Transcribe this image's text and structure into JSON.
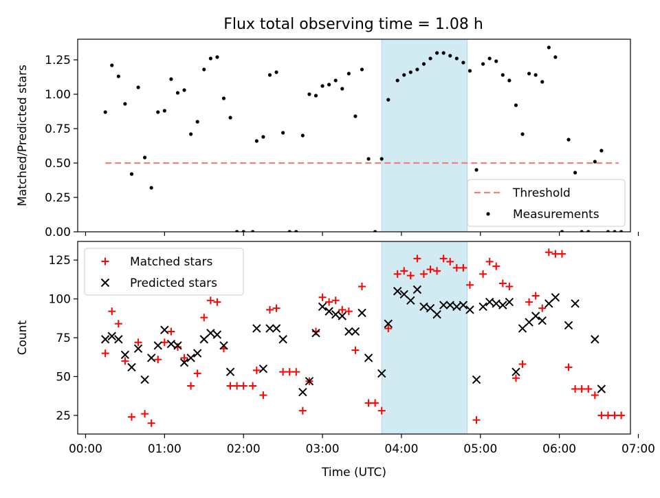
{
  "title": "Flux total observing time = 1.08 h",
  "colors": {
    "threshold": "#f08080",
    "measurement": "#000000",
    "matched": "#ff0000",
    "predicted": "#000000",
    "highlight": "#add8e6"
  },
  "chart_data": [
    {
      "type": "scatter",
      "name": "ratio-panel",
      "ylabel": "Matched/Predicted stars",
      "xlabel": "",
      "ylim": [
        0,
        1.4
      ],
      "xlim_hours": [
        -0.1,
        6.9
      ],
      "yticks": [
        "0.00",
        "0.25",
        "0.50",
        "0.75",
        "1.00",
        "1.25"
      ],
      "ytick_values": [
        0,
        0.25,
        0.5,
        0.75,
        1.0,
        1.25
      ],
      "highlight_span": {
        "start": "03:45",
        "end": "04:50"
      },
      "legend_position": "lower right",
      "legend": [
        "Threshold",
        "Measurements"
      ],
      "threshold": {
        "name": "Threshold",
        "value": 0.5,
        "x_start": "00:15",
        "x_end": "06:45"
      },
      "series": [
        {
          "name": "Measurements",
          "points": [
            [
              "00:15",
              0.87
            ],
            [
              "00:20",
              1.21
            ],
            [
              "00:25",
              1.13
            ],
            [
              "00:30",
              0.93
            ],
            [
              "00:35",
              0.42
            ],
            [
              "00:40",
              1.05
            ],
            [
              "00:45",
              0.54
            ],
            [
              "00:50",
              0.32
            ],
            [
              "00:55",
              0.87
            ],
            [
              "01:00",
              0.88
            ],
            [
              "01:05",
              1.11
            ],
            [
              "01:10",
              1.01
            ],
            [
              "01:15",
              1.03
            ],
            [
              "01:20",
              0.71
            ],
            [
              "01:25",
              0.8
            ],
            [
              "01:30",
              1.18
            ],
            [
              "01:35",
              1.26
            ],
            [
              "01:40",
              1.27
            ],
            [
              "01:45",
              0.97
            ],
            [
              "01:50",
              0.83
            ],
            [
              "01:55",
              0.0
            ],
            [
              "02:00",
              0.0
            ],
            [
              "02:07",
              0.0
            ],
            [
              "02:10",
              0.66
            ],
            [
              "02:15",
              0.69
            ],
            [
              "02:20",
              1.14
            ],
            [
              "02:25",
              1.16
            ],
            [
              "02:30",
              0.72
            ],
            [
              "02:35",
              0.0
            ],
            [
              "02:40",
              0.0
            ],
            [
              "02:45",
              0.7
            ],
            [
              "02:50",
              1.0
            ],
            [
              "02:55",
              0.99
            ],
            [
              "03:00",
              1.06
            ],
            [
              "03:05",
              1.07
            ],
            [
              "03:10",
              1.1
            ],
            [
              "03:15",
              1.04
            ],
            [
              "03:20",
              1.15
            ],
            [
              "03:25",
              0.84
            ],
            [
              "03:30",
              1.18
            ],
            [
              "03:35",
              0.53
            ],
            [
              "03:40",
              0.0
            ],
            [
              "03:45",
              0.53
            ],
            [
              "03:50",
              0.96
            ],
            [
              "03:57",
              1.1
            ],
            [
              "04:02",
              1.14
            ],
            [
              "04:07",
              1.16
            ],
            [
              "04:12",
              1.18
            ],
            [
              "04:17",
              1.22
            ],
            [
              "04:22",
              1.26
            ],
            [
              "04:27",
              1.3
            ],
            [
              "04:32",
              1.3
            ],
            [
              "04:37",
              1.28
            ],
            [
              "04:42",
              1.26
            ],
            [
              "04:47",
              1.23
            ],
            [
              "04:52",
              1.17
            ],
            [
              "04:57",
              0.45
            ],
            [
              "05:02",
              1.22
            ],
            [
              "05:07",
              1.26
            ],
            [
              "05:12",
              1.24
            ],
            [
              "05:17",
              1.14
            ],
            [
              "05:22",
              1.1
            ],
            [
              "05:27",
              0.92
            ],
            [
              "05:32",
              0.71
            ],
            [
              "05:37",
              1.15
            ],
            [
              "05:42",
              1.14
            ],
            [
              "05:47",
              1.09
            ],
            [
              "05:52",
              1.34
            ],
            [
              "05:57",
              1.27
            ],
            [
              "06:02",
              0.0
            ],
            [
              "06:07",
              0.67
            ],
            [
              "06:12",
              0.43
            ],
            [
              "06:17",
              0.0
            ],
            [
              "06:22",
              0.0
            ],
            [
              "06:27",
              0.51
            ],
            [
              "06:32",
              0.59
            ],
            [
              "06:37",
              0.0
            ],
            [
              "06:42",
              0.0
            ],
            [
              "06:47",
              0.0
            ]
          ]
        }
      ]
    },
    {
      "type": "scatter",
      "name": "count-panel",
      "ylabel": "Count",
      "xlabel": "Time (UTC)",
      "ylim": [
        13,
        137
      ],
      "xlim_hours": [
        -0.1,
        6.9
      ],
      "yticks": [
        "25",
        "50",
        "75",
        "100",
        "125"
      ],
      "ytick_values": [
        25,
        50,
        75,
        100,
        125
      ],
      "xticks": [
        "00:00",
        "01:00",
        "02:00",
        "03:00",
        "04:00",
        "05:00",
        "06:00",
        "07:00"
      ],
      "xtick_values": [
        0,
        1,
        2,
        3,
        4,
        5,
        6,
        7
      ],
      "highlight_span": {
        "start": "03:45",
        "end": "04:50"
      },
      "legend_position": "upper left",
      "legend": [
        "Matched stars",
        "Predicted stars"
      ],
      "series": [
        {
          "name": "Matched stars",
          "marker": "plus",
          "points": [
            [
              "00:15",
              65
            ],
            [
              "00:20",
              92
            ],
            [
              "00:25",
              84
            ],
            [
              "00:30",
              60
            ],
            [
              "00:35",
              24
            ],
            [
              "00:40",
              72
            ],
            [
              "00:45",
              26
            ],
            [
              "00:50",
              20
            ],
            [
              "00:55",
              61
            ],
            [
              "01:00",
              72
            ],
            [
              "01:05",
              79
            ],
            [
              "01:10",
              69
            ],
            [
              "01:15",
              62
            ],
            [
              "01:20",
              44
            ],
            [
              "01:25",
              52
            ],
            [
              "01:30",
              88
            ],
            [
              "01:35",
              99
            ],
            [
              "01:40",
              98
            ],
            [
              "01:45",
              68
            ],
            [
              "01:50",
              44
            ],
            [
              "01:55",
              44
            ],
            [
              "02:00",
              44
            ],
            [
              "02:07",
              44
            ],
            [
              "02:10",
              54
            ],
            [
              "02:15",
              38
            ],
            [
              "02:20",
              93
            ],
            [
              "02:25",
              94
            ],
            [
              "02:30",
              53
            ],
            [
              "02:35",
              53
            ],
            [
              "02:40",
              53
            ],
            [
              "02:45",
              28
            ],
            [
              "02:50",
              47
            ],
            [
              "02:55",
              79
            ],
            [
              "03:00",
              101
            ],
            [
              "03:05",
              98
            ],
            [
              "03:10",
              99
            ],
            [
              "03:15",
              93
            ],
            [
              "03:20",
              92
            ],
            [
              "03:25",
              67
            ],
            [
              "03:30",
              108
            ],
            [
              "03:35",
              33
            ],
            [
              "03:40",
              33
            ],
            [
              "03:45",
              28
            ],
            [
              "03:50",
              81
            ],
            [
              "03:57",
              116
            ],
            [
              "04:02",
              118
            ],
            [
              "04:07",
              115
            ],
            [
              "04:12",
              126
            ],
            [
              "04:17",
              116
            ],
            [
              "04:22",
              119
            ],
            [
              "04:27",
              118
            ],
            [
              "04:32",
              126
            ],
            [
              "04:37",
              124
            ],
            [
              "04:42",
              120
            ],
            [
              "04:47",
              120
            ],
            [
              "04:52",
              109
            ],
            [
              "04:57",
              22
            ],
            [
              "05:02",
              116
            ],
            [
              "05:07",
              124
            ],
            [
              "05:12",
              121
            ],
            [
              "05:17",
              110
            ],
            [
              "05:22",
              108
            ],
            [
              "05:27",
              49
            ],
            [
              "05:32",
              58
            ],
            [
              "05:37",
              98
            ],
            [
              "05:42",
              102
            ],
            [
              "05:47",
              94
            ],
            [
              "05:52",
              130
            ],
            [
              "05:57",
              129
            ],
            [
              "06:02",
              129
            ],
            [
              "06:07",
              56
            ],
            [
              "06:12",
              42
            ],
            [
              "06:17",
              42
            ],
            [
              "06:22",
              42
            ],
            [
              "06:27",
              38
            ],
            [
              "06:32",
              25
            ],
            [
              "06:37",
              25
            ],
            [
              "06:42",
              25
            ],
            [
              "06:47",
              25
            ]
          ]
        },
        {
          "name": "Predicted stars",
          "marker": "x",
          "points": [
            [
              "00:15",
              74
            ],
            [
              "00:20",
              76
            ],
            [
              "00:25",
              74
            ],
            [
              "00:30",
              64
            ],
            [
              "00:35",
              56
            ],
            [
              "00:40",
              68
            ],
            [
              "00:45",
              48
            ],
            [
              "00:50",
              62
            ],
            [
              "00:55",
              70
            ],
            [
              "01:00",
              80
            ],
            [
              "01:05",
              71
            ],
            [
              "01:10",
              70
            ],
            [
              "01:15",
              59
            ],
            [
              "01:20",
              62
            ],
            [
              "01:25",
              65
            ],
            [
              "01:30",
              74
            ],
            [
              "01:35",
              78
            ],
            [
              "01:40",
              77
            ],
            [
              "01:45",
              70
            ],
            [
              "01:50",
              53
            ],
            [
              "02:10",
              81
            ],
            [
              "02:15",
              55
            ],
            [
              "02:20",
              81
            ],
            [
              "02:25",
              81
            ],
            [
              "02:30",
              74
            ],
            [
              "02:45",
              40
            ],
            [
              "02:50",
              47
            ],
            [
              "02:55",
              78
            ],
            [
              "03:00",
              95
            ],
            [
              "03:05",
              92
            ],
            [
              "03:10",
              90
            ],
            [
              "03:15",
              89
            ],
            [
              "03:20",
              79
            ],
            [
              "03:25",
              79
            ],
            [
              "03:30",
              91
            ],
            [
              "03:35",
              62
            ],
            [
              "03:45",
              52
            ],
            [
              "03:50",
              84
            ],
            [
              "03:57",
              105
            ],
            [
              "04:02",
              103
            ],
            [
              "04:07",
              99
            ],
            [
              "04:12",
              106
            ],
            [
              "04:17",
              95
            ],
            [
              "04:22",
              94
            ],
            [
              "04:27",
              90
            ],
            [
              "04:32",
              96
            ],
            [
              "04:37",
              96
            ],
            [
              "04:42",
              95
            ],
            [
              "04:47",
              96
            ],
            [
              "04:52",
              93
            ],
            [
              "04:57",
              48
            ],
            [
              "05:02",
              95
            ],
            [
              "05:07",
              98
            ],
            [
              "05:12",
              97
            ],
            [
              "05:17",
              96
            ],
            [
              "05:22",
              98
            ],
            [
              "05:27",
              53
            ],
            [
              "05:32",
              81
            ],
            [
              "05:37",
              85
            ],
            [
              "05:42",
              89
            ],
            [
              "05:47",
              86
            ],
            [
              "05:52",
              97
            ],
            [
              "05:57",
              101
            ],
            [
              "06:07",
              83
            ],
            [
              "06:12",
              97
            ],
            [
              "06:27",
              74
            ],
            [
              "06:32",
              42
            ]
          ]
        }
      ]
    }
  ]
}
